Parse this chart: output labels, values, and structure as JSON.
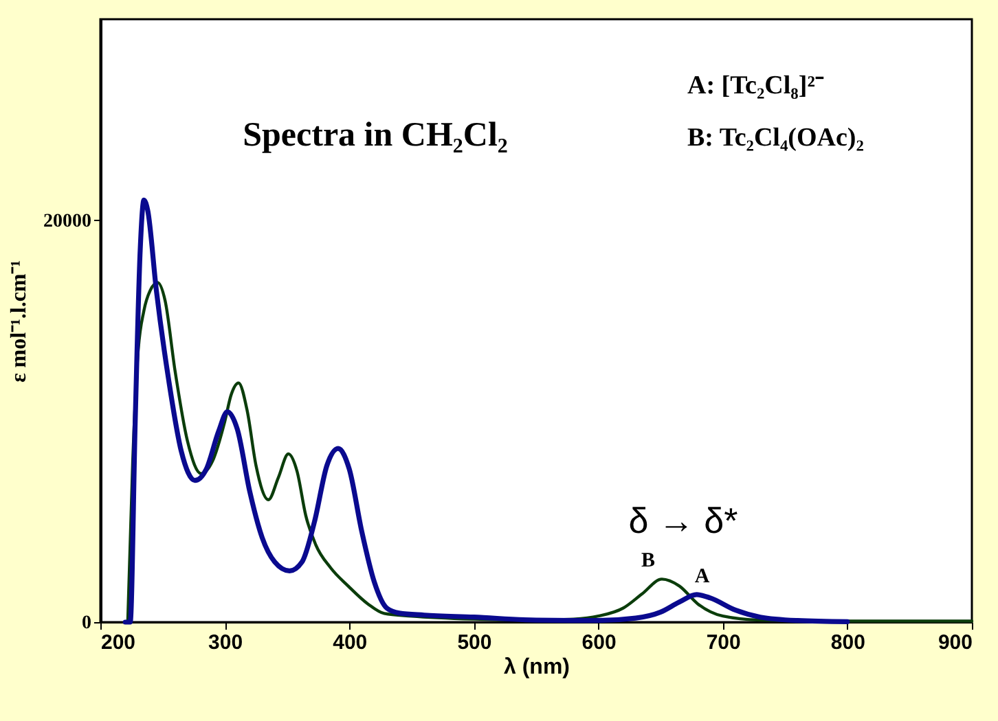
{
  "chart_data": {
    "type": "line",
    "title": "Spectra in CH₂Cl₂",
    "xlabel": "λ (nm)",
    "ylabel": "ε mol⁻¹.l.cm⁻¹",
    "xlim": [
      200,
      900
    ],
    "xticks": [
      200,
      300,
      400,
      500,
      600,
      700,
      800,
      900
    ],
    "ylim": [
      0,
      30000
    ],
    "yticks": [
      0,
      20000
    ],
    "grid": false,
    "marker": "none",
    "line_style": "solid",
    "annotations": [
      "A: [Tc₂Cl₈]²⁻",
      "B: Tc₂Cl₄(OAc)₂",
      "δ → δ*"
    ],
    "series": [
      {
        "name": "B",
        "color": "#0b3d0b",
        "x": [
          222,
          226,
          230,
          235,
          240,
          246,
          252,
          260,
          270,
          281,
          290,
          300,
          305,
          311,
          318,
          325,
          335,
          343,
          351,
          358,
          365,
          373,
          385,
          399,
          415,
          428,
          450,
          500,
          550,
          580,
          600,
          620,
          635,
          651,
          665,
          680,
          700,
          730,
          800,
          900
        ],
        "values": [
          0,
          8000,
          13200,
          15500,
          16500,
          16900,
          16000,
          12500,
          9000,
          7390,
          8000,
          10000,
          11300,
          11900,
          10500,
          7800,
          6090,
          7200,
          8370,
          7500,
          5300,
          3850,
          2700,
          1800,
          900,
          430,
          300,
          150,
          100,
          150,
          300,
          700,
          1400,
          2140,
          1800,
          900,
          300,
          100,
          50,
          50
        ]
      },
      {
        "name": "A",
        "color": "#0a0a8f",
        "x": [
          220,
          224,
          228,
          232,
          235,
          238,
          245,
          255,
          265,
          276,
          285,
          295,
          302,
          310,
          320,
          330,
          340,
          352,
          362,
          372,
          382,
          391,
          400,
          410,
          420,
          430,
          440,
          460,
          500,
          550,
          600,
          630,
          650,
          665,
          679,
          690,
          710,
          730,
          760,
          800
        ],
        "values": [
          0,
          0,
          10000,
          18500,
          21000,
          20500,
          16500,
          12000,
          8500,
          7050,
          7600,
          9500,
          10470,
          9600,
          6500,
          4200,
          3000,
          2550,
          3000,
          5000,
          7800,
          8640,
          7600,
          4500,
          2000,
          700,
          450,
          350,
          250,
          100,
          80,
          200,
          500,
          1000,
          1370,
          1200,
          600,
          250,
          80,
          20
        ]
      }
    ]
  }
}
